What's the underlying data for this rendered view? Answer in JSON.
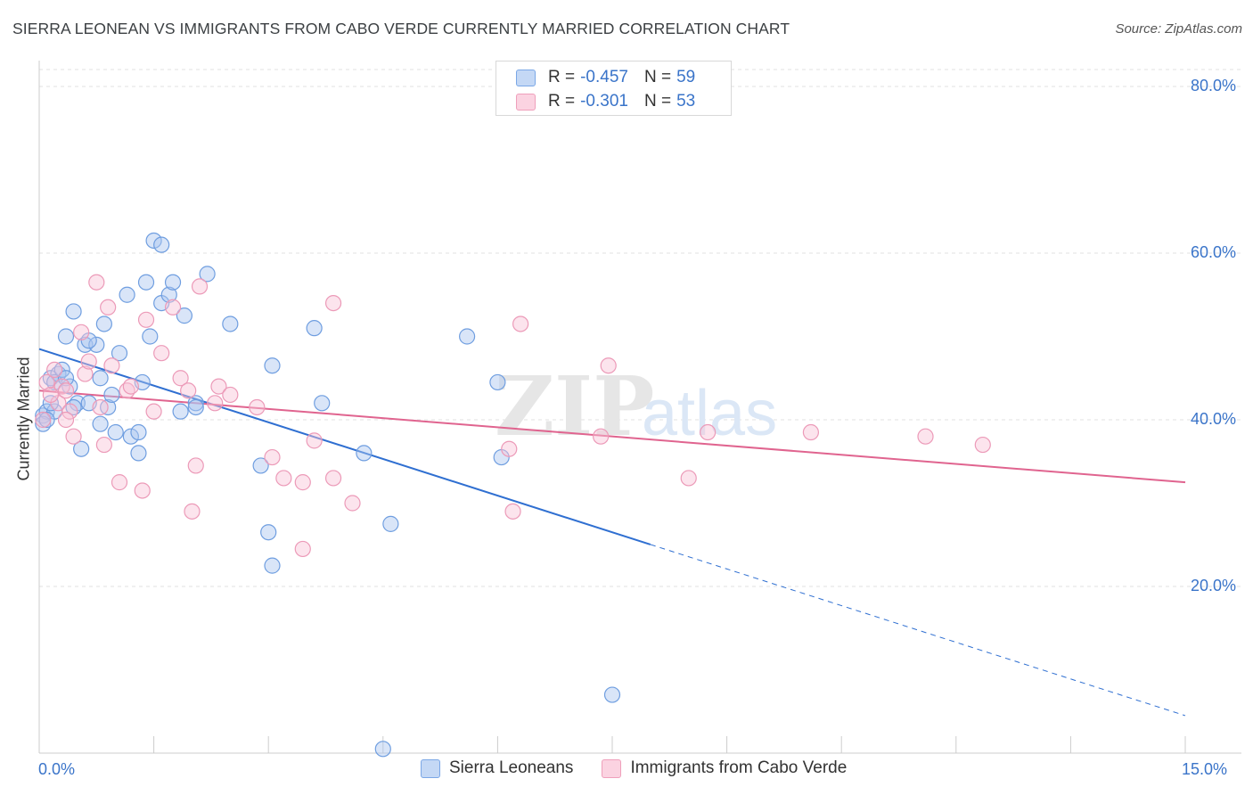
{
  "title": "SIERRA LEONEAN VS IMMIGRANTS FROM CABO VERDE CURRENTLY MARRIED CORRELATION CHART",
  "source": "Source: ZipAtlas.com",
  "watermark": {
    "zip": "ZIP",
    "atlas": "atlas"
  },
  "legend": {
    "r_label": "R =",
    "n_label": "N =",
    "series": [
      {
        "name": "Sierra Leoneans",
        "r": "-0.457",
        "n": "59",
        "color": "#7aa7e6",
        "fill": "#c4d8f5"
      },
      {
        "name": "Immigrants from Cabo Verde",
        "r": "-0.301",
        "n": "53",
        "color": "#ef9fbb",
        "fill": "#fbd3e1"
      }
    ]
  },
  "chart_data": {
    "type": "scatter",
    "title": "SIERRA LEONEAN VS IMMIGRANTS FROM CABO VERDE CURRENTLY MARRIED CORRELATION CHART",
    "xlabel": "",
    "ylabel": "Currently Married",
    "xlim": [
      0,
      15
    ],
    "ylim": [
      0,
      80
    ],
    "x_tick_labels": [
      "0.0%",
      "15.0%"
    ],
    "y_tick_labels": [
      "80.0%",
      "60.0%",
      "40.0%",
      "20.0%"
    ],
    "y_ticks": [
      80,
      60,
      40,
      20
    ],
    "series": [
      {
        "name": "Sierra Leoneans",
        "points": [
          [
            0.05,
            40.5
          ],
          [
            0.1,
            41.0
          ],
          [
            0.15,
            45.0
          ],
          [
            0.2,
            41.0
          ],
          [
            0.25,
            45.5
          ],
          [
            0.3,
            46.0
          ],
          [
            0.35,
            50.0
          ],
          [
            0.4,
            44.0
          ],
          [
            0.45,
            53.0
          ],
          [
            0.5,
            42.0
          ],
          [
            0.55,
            36.5
          ],
          [
            0.6,
            49.0
          ],
          [
            0.65,
            42.0
          ],
          [
            0.75,
            49.0
          ],
          [
            0.8,
            39.5
          ],
          [
            0.85,
            51.5
          ],
          [
            0.9,
            41.5
          ],
          [
            0.95,
            43.0
          ],
          [
            1.05,
            48.0
          ],
          [
            1.15,
            55.0
          ],
          [
            1.2,
            38.0
          ],
          [
            1.3,
            36.0
          ],
          [
            1.35,
            44.5
          ],
          [
            1.4,
            56.5
          ],
          [
            1.45,
            50.0
          ],
          [
            1.5,
            61.5
          ],
          [
            1.6,
            54.0
          ],
          [
            1.7,
            55.0
          ],
          [
            1.75,
            56.5
          ],
          [
            1.85,
            41.0
          ],
          [
            1.9,
            52.5
          ],
          [
            2.05,
            42.0
          ],
          [
            2.2,
            57.5
          ],
          [
            2.5,
            51.5
          ],
          [
            2.9,
            34.5
          ],
          [
            3.0,
            26.5
          ],
          [
            3.05,
            46.5
          ],
          [
            3.05,
            22.5
          ],
          [
            3.6,
            51.0
          ],
          [
            3.7,
            42.0
          ],
          [
            4.25,
            36.0
          ],
          [
            4.6,
            27.5
          ],
          [
            4.5,
            0.5
          ],
          [
            5.6,
            50.0
          ],
          [
            6.0,
            44.5
          ],
          [
            6.05,
            35.5
          ],
          [
            7.5,
            7.0
          ],
          [
            0.05,
            39.5
          ],
          [
            0.15,
            42.0
          ],
          [
            0.2,
            44.5
          ],
          [
            0.35,
            45.0
          ],
          [
            0.45,
            41.5
          ],
          [
            0.65,
            49.5
          ],
          [
            0.8,
            45.0
          ],
          [
            1.0,
            38.5
          ],
          [
            1.3,
            38.5
          ],
          [
            1.6,
            61.0
          ],
          [
            2.05,
            41.5
          ],
          [
            0.1,
            40.0
          ]
        ]
      },
      {
        "name": "Immigrants from Cabo Verde",
        "points": [
          [
            0.05,
            40.0
          ],
          [
            0.1,
            44.5
          ],
          [
            0.2,
            46.0
          ],
          [
            0.25,
            42.0
          ],
          [
            0.3,
            44.0
          ],
          [
            0.35,
            43.5
          ],
          [
            0.4,
            41.0
          ],
          [
            0.45,
            38.0
          ],
          [
            0.55,
            50.5
          ],
          [
            0.6,
            45.5
          ],
          [
            0.65,
            47.0
          ],
          [
            0.75,
            56.5
          ],
          [
            0.8,
            41.5
          ],
          [
            0.85,
            37.0
          ],
          [
            0.9,
            53.5
          ],
          [
            0.95,
            46.5
          ],
          [
            1.05,
            32.5
          ],
          [
            1.15,
            43.5
          ],
          [
            1.2,
            44.0
          ],
          [
            1.35,
            31.5
          ],
          [
            1.4,
            52.0
          ],
          [
            1.5,
            41.0
          ],
          [
            1.6,
            48.0
          ],
          [
            1.75,
            53.5
          ],
          [
            1.85,
            45.0
          ],
          [
            1.95,
            43.5
          ],
          [
            2.0,
            29.0
          ],
          [
            2.05,
            34.5
          ],
          [
            2.1,
            56.0
          ],
          [
            2.3,
            42.0
          ],
          [
            2.35,
            44.0
          ],
          [
            2.5,
            43.0
          ],
          [
            2.85,
            41.5
          ],
          [
            3.05,
            35.5
          ],
          [
            3.2,
            33.0
          ],
          [
            3.45,
            32.5
          ],
          [
            3.45,
            24.5
          ],
          [
            3.6,
            37.5
          ],
          [
            3.85,
            33.0
          ],
          [
            3.85,
            54.0
          ],
          [
            4.1,
            30.0
          ],
          [
            6.2,
            29.0
          ],
          [
            6.3,
            51.5
          ],
          [
            6.15,
            36.5
          ],
          [
            7.35,
            38.0
          ],
          [
            7.45,
            46.5
          ],
          [
            8.5,
            33.0
          ],
          [
            8.75,
            38.5
          ],
          [
            10.1,
            38.5
          ],
          [
            11.6,
            38.0
          ],
          [
            12.35,
            37.0
          ],
          [
            0.15,
            43.0
          ],
          [
            0.35,
            40.0
          ]
        ]
      }
    ],
    "trend_lines": [
      {
        "series": "Sierra Leoneans",
        "x_start": 0.0,
        "y_start": 48.5,
        "x_solid_end": 8.0,
        "x_end": 15.0,
        "y_end": 4.5,
        "slope": -2.933
      },
      {
        "series": "Immigrants from Cabo Verde",
        "x_start": 0.0,
        "y_start": 43.5,
        "x_end": 15.0,
        "y_end": 32.5
      }
    ],
    "grid": true,
    "legend_position": "top-center"
  }
}
